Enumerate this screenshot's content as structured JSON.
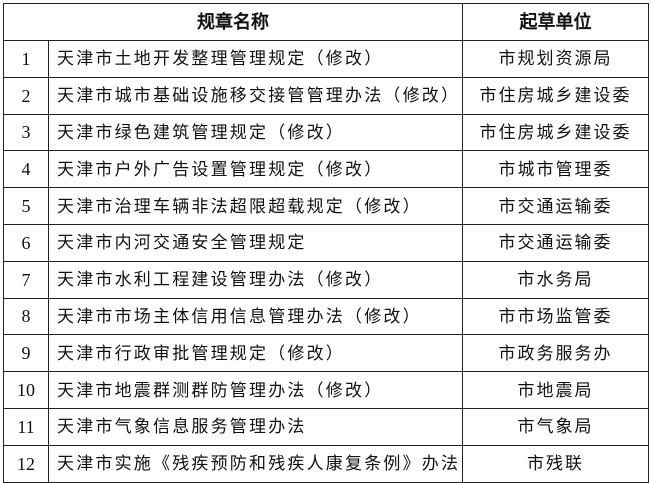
{
  "headers": {
    "name": "规章名称",
    "unit": "起草单位"
  },
  "rows": [
    {
      "no": "1",
      "name": "天津市土地开发整理管理规定（修改）",
      "unit": "市规划资源局"
    },
    {
      "no": "2",
      "name": "天津市城市基础设施移交接管管理办法（修改）",
      "unit": "市住房城乡建设委"
    },
    {
      "no": "3",
      "name": "天津市绿色建筑管理规定（修改）",
      "unit": "市住房城乡建设委"
    },
    {
      "no": "4",
      "name": "天津市户外广告设置管理规定（修改）",
      "unit": "市城市管理委"
    },
    {
      "no": "5",
      "name": "天津市治理车辆非法超限超载规定（修改）",
      "unit": "市交通运输委"
    },
    {
      "no": "6",
      "name": "天津市内河交通安全管理规定",
      "unit": "市交通运输委"
    },
    {
      "no": "7",
      "name": "天津市水利工程建设管理办法（修改）",
      "unit": "市水务局"
    },
    {
      "no": "8",
      "name": "天津市市场主体信用信息管理办法（修改）",
      "unit": "市市场监管委"
    },
    {
      "no": "9",
      "name": "天津市行政审批管理规定（修改）",
      "unit": "市政务服务办"
    },
    {
      "no": "10",
      "name": "天津市地震群测群防管理办法（修改）",
      "unit": "市地震局"
    },
    {
      "no": "11",
      "name": "天津市气象信息服务管理办法",
      "unit": "市气象局"
    },
    {
      "no": "12",
      "name": "天津市实施《残疾预防和残疾人康复条例》办法",
      "unit": "市残联"
    }
  ]
}
